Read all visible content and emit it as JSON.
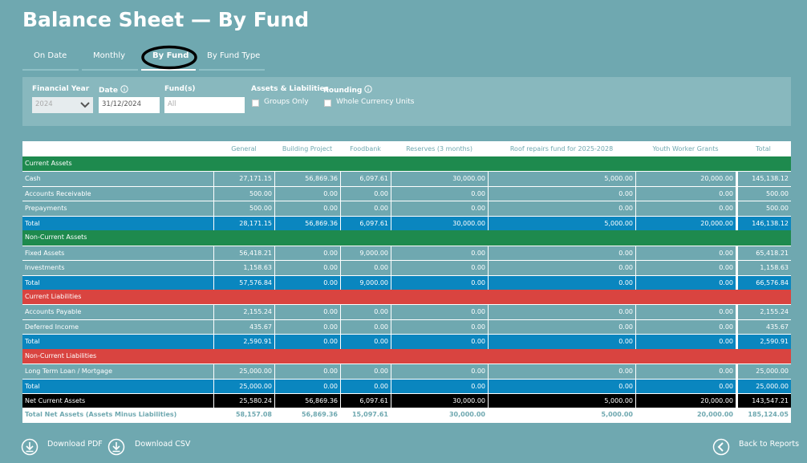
{
  "header": {
    "title": "Balance Sheet — By Fund"
  },
  "tabs": [
    "On Date",
    "Monthly",
    "By Fund",
    "By Fund Type"
  ],
  "filters": {
    "financial_year": {
      "label": "Financial Year",
      "value": "2024"
    },
    "date": {
      "label": "Date",
      "value": "31/12/2024"
    },
    "funds": {
      "label": "Fund(s)",
      "placeholder": "All"
    },
    "assets_liabilities": {
      "label": "Assets & Liabilities",
      "option": "Groups Only"
    },
    "rounding": {
      "label": "Rounding",
      "option": "Whole Currency Units"
    }
  },
  "table": {
    "columns": [
      "General",
      "Building Project",
      "Foodbank",
      "Reserves (3 months)",
      "Roof repairs fund for 2025-2028",
      "Youth Worker Grants",
      "Total"
    ],
    "sections": [
      {
        "title": "Current Assets",
        "color": "#1e8a4e",
        "rows": [
          [
            "Cash",
            "27,171.15",
            "56,869.36",
            "6,097.61",
            "30,000.00",
            "5,000.00",
            "20,000.00",
            "145,138.12"
          ],
          [
            "Accounts Receivable",
            "500.00",
            "0.00",
            "0.00",
            "0.00",
            "0.00",
            "0.00",
            "500.00"
          ],
          [
            "Prepayments",
            "500.00",
            "0.00",
            "0.00",
            "0.00",
            "0.00",
            "0.00",
            "500.00"
          ]
        ],
        "total": [
          "Total",
          "28,171.15",
          "56,869.36",
          "6,097.61",
          "30,000.00",
          "5,000.00",
          "20,000.00",
          "146,138.12"
        ]
      },
      {
        "title": "Non-Current Assets",
        "color": "#1e8a4e",
        "rows": [
          [
            "Fixed Assets",
            "56,418.21",
            "0.00",
            "9,000.00",
            "0.00",
            "0.00",
            "0.00",
            "65,418.21"
          ],
          [
            "Investments",
            "1,158.63",
            "0.00",
            "0.00",
            "0.00",
            "0.00",
            "0.00",
            "1,158.63"
          ]
        ],
        "total": [
          "Total",
          "57,576.84",
          "0.00",
          "9,000.00",
          "0.00",
          "0.00",
          "0.00",
          "66,576.84"
        ]
      },
      {
        "title": "Current Liabilities",
        "color": "#d94440",
        "rows": [
          [
            "Accounts Payable",
            "2,155.24",
            "0.00",
            "0.00",
            "0.00",
            "0.00",
            "0.00",
            "2,155.24"
          ],
          [
            "Deferred Income",
            "435.67",
            "0.00",
            "0.00",
            "0.00",
            "0.00",
            "0.00",
            "435.67"
          ]
        ],
        "total": [
          "Total",
          "2,590.91",
          "0.00",
          "0.00",
          "0.00",
          "0.00",
          "0.00",
          "2,590.91"
        ]
      },
      {
        "title": "Non-Current Liabilities",
        "color": "#d94440",
        "rows": [
          [
            "Long Term Loan / Mortgage",
            "25,000.00",
            "0.00",
            "0.00",
            "0.00",
            "0.00",
            "0.00",
            "25,000.00"
          ]
        ],
        "total": [
          "Total",
          "25,000.00",
          "0.00",
          "0.00",
          "0.00",
          "0.00",
          "0.00",
          "25,000.00"
        ]
      }
    ],
    "net_current_assets": [
      "Net Current Assets",
      "25,580.24",
      "56,869.36",
      "6,097.61",
      "30,000.00",
      "5,000.00",
      "20,000.00",
      "143,547.21"
    ],
    "total_net_assets": [
      "Total Net Assets (Assets Minus Liabilities)",
      "58,157.08",
      "56,869.36",
      "15,097.61",
      "30,000.00",
      "5,000.00",
      "20,000.00",
      "185,124.05"
    ]
  },
  "footer": {
    "download_pdf": "Download PDF",
    "download_csv": "Download CSV",
    "back": "Back to Reports"
  }
}
